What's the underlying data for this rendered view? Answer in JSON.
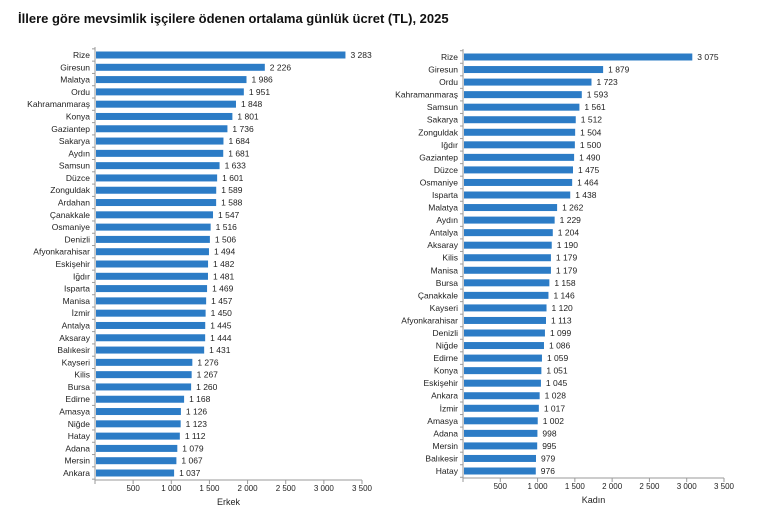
{
  "title": "İllere göre mevsimlik işçilere ödenen ortalama günlük ücret (TL), 2025",
  "colors": {
    "bar": "#2c7cc6",
    "axis": "#9a9a9a"
  },
  "chart_data": [
    {
      "type": "bar",
      "orientation": "horizontal",
      "xlabel": "Erkek",
      "xlim": [
        0,
        3500
      ],
      "xticks": [
        500,
        1000,
        1500,
        2000,
        2500,
        3000,
        3500
      ],
      "xtick_labels": [
        "500",
        "1 000",
        "1 500",
        "2 000",
        "2 500",
        "3 000",
        "3 500"
      ],
      "categories": [
        "Rize",
        "Giresun",
        "Malatya",
        "Ordu",
        "Kahramanmaraş",
        "Konya",
        "Gaziantep",
        "Sakarya",
        "Aydın",
        "Samsun",
        "Düzce",
        "Zonguldak",
        "Ardahan",
        "Çanakkale",
        "Osmaniye",
        "Denizli",
        "Afyonkarahisar",
        "Eskişehir",
        "Iğdır",
        "Isparta",
        "Manisa",
        "İzmir",
        "Antalya",
        "Aksaray",
        "Balıkesir",
        "Kayseri",
        "Kilis",
        "Bursa",
        "Edirne",
        "Amasya",
        "Niğde",
        "Hatay",
        "Adana",
        "Mersin",
        "Ankara"
      ],
      "values": [
        3283,
        2226,
        1986,
        1951,
        1848,
        1801,
        1736,
        1684,
        1681,
        1633,
        1601,
        1589,
        1588,
        1547,
        1516,
        1506,
        1494,
        1482,
        1481,
        1469,
        1457,
        1450,
        1445,
        1444,
        1431,
        1276,
        1267,
        1260,
        1168,
        1126,
        1123,
        1112,
        1079,
        1067,
        1037
      ],
      "value_labels": [
        "3 283",
        "2 226",
        "1 986",
        "1 951",
        "1 848",
        "1 801",
        "1 736",
        "1 684",
        "1 681",
        "1 633",
        "1 601",
        "1 589",
        "1 588",
        "1 547",
        "1 516",
        "1 506",
        "1 494",
        "1 482",
        "1 481",
        "1 469",
        "1 457",
        "1 450",
        "1 445",
        "1 444",
        "1 431",
        "1 276",
        "1 267",
        "1 260",
        "1 168",
        "1 126",
        "1 123",
        "1 112",
        "1 079",
        "1 067",
        "1 037"
      ]
    },
    {
      "type": "bar",
      "orientation": "horizontal",
      "xlabel": "Kadın",
      "xlim": [
        0,
        3500
      ],
      "xticks": [
        500,
        1000,
        1500,
        2000,
        2500,
        3000,
        3500
      ],
      "xtick_labels": [
        "500",
        "1 000",
        "1 500",
        "2 000",
        "2 500",
        "3 000",
        "3 500"
      ],
      "categories": [
        "Rize",
        "Giresun",
        "Ordu",
        "Kahramanmaraş",
        "Samsun",
        "Sakarya",
        "Zonguldak",
        "Iğdır",
        "Gaziantep",
        "Düzce",
        "Osmaniye",
        "Isparta",
        "Malatya",
        "Aydın",
        "Antalya",
        "Aksaray",
        "Kilis",
        "Manisa",
        "Bursa",
        "Çanakkale",
        "Kayseri",
        "Afyonkarahisar",
        "Denizli",
        "Niğde",
        "Edirne",
        "Konya",
        "Eskişehir",
        "Ankara",
        "İzmir",
        "Amasya",
        "Adana",
        "Mersin",
        "Balıkesir",
        "Hatay"
      ],
      "values": [
        3075,
        1879,
        1723,
        1593,
        1561,
        1512,
        1504,
        1500,
        1490,
        1475,
        1464,
        1438,
        1262,
        1229,
        1204,
        1190,
        1179,
        1179,
        1158,
        1146,
        1120,
        1113,
        1099,
        1086,
        1059,
        1051,
        1045,
        1028,
        1017,
        1002,
        998,
        995,
        979,
        976
      ],
      "value_labels": [
        "3 075",
        "1 879",
        "1 723",
        "1 593",
        "1 561",
        "1 512",
        "1 504",
        "1 500",
        "1 490",
        "1 475",
        "1 464",
        "1 438",
        "1 262",
        "1 229",
        "1 204",
        "1 190",
        "1 179",
        "1 179",
        "1 158",
        "1 146",
        "1 120",
        "1 113",
        "1 099",
        "1 086",
        "1 059",
        "1 051",
        "1 045",
        "1 028",
        "1 017",
        "1 002",
        "998",
        "995",
        "979",
        "976"
      ]
    }
  ]
}
